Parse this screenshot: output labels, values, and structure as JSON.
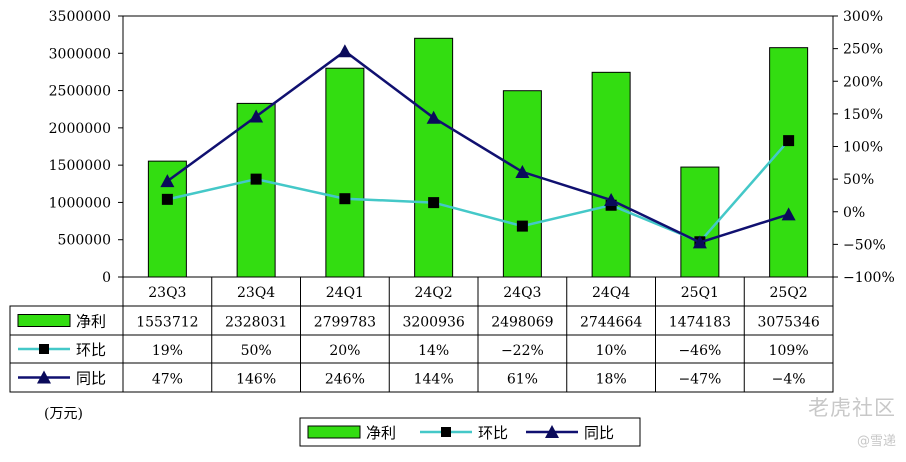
{
  "chart_data": {
    "type": "bar",
    "categories": [
      "23Q3",
      "23Q4",
      "24Q1",
      "24Q2",
      "24Q3",
      "24Q4",
      "25Q1",
      "25Q2"
    ],
    "unit_label": "(万元)",
    "series": [
      {
        "name": "净利",
        "kind": "bar",
        "axis": "left",
        "color": "#33dd11",
        "values": [
          1553712,
          2328031,
          2799783,
          3200936,
          2498069,
          2744664,
          1474183,
          3075346
        ],
        "labels": [
          "1553712",
          "2328031",
          "2799783",
          "3200936",
          "2498069",
          "2744664",
          "1474183",
          "3075346"
        ]
      },
      {
        "name": "环比",
        "kind": "line",
        "marker": "square",
        "axis": "right",
        "color": "#44c8c8",
        "values": [
          19,
          50,
          20,
          14,
          -22,
          10,
          -46,
          109
        ],
        "labels": [
          "19%",
          "50%",
          "20%",
          "14%",
          "-22%",
          "10%",
          "-46%",
          "109%"
        ]
      },
      {
        "name": "同比",
        "kind": "line",
        "marker": "triangle",
        "axis": "right",
        "color": "#101070",
        "values": [
          47,
          146,
          246,
          144,
          61,
          18,
          -47,
          -4
        ],
        "labels": [
          "47%",
          "146%",
          "246%",
          "144%",
          "61%",
          "18%",
          "-47%",
          "-4%"
        ]
      }
    ],
    "y_left": {
      "min": 0,
      "max": 3500000,
      "step": 500000,
      "ticks": [
        "0",
        "500000",
        "1000000",
        "1500000",
        "2000000",
        "2500000",
        "3000000",
        "3500000"
      ]
    },
    "y_right": {
      "min": -100,
      "max": 300,
      "step": 50,
      "ticks": [
        "-100%",
        "-50%",
        "0%",
        "50%",
        "100%",
        "150%",
        "200%",
        "250%",
        "300%"
      ]
    },
    "grid": false,
    "legend": "bottom-center",
    "data_table": true
  },
  "watermark": {
    "brand": "老虎社区",
    "user": "@雪递"
  }
}
